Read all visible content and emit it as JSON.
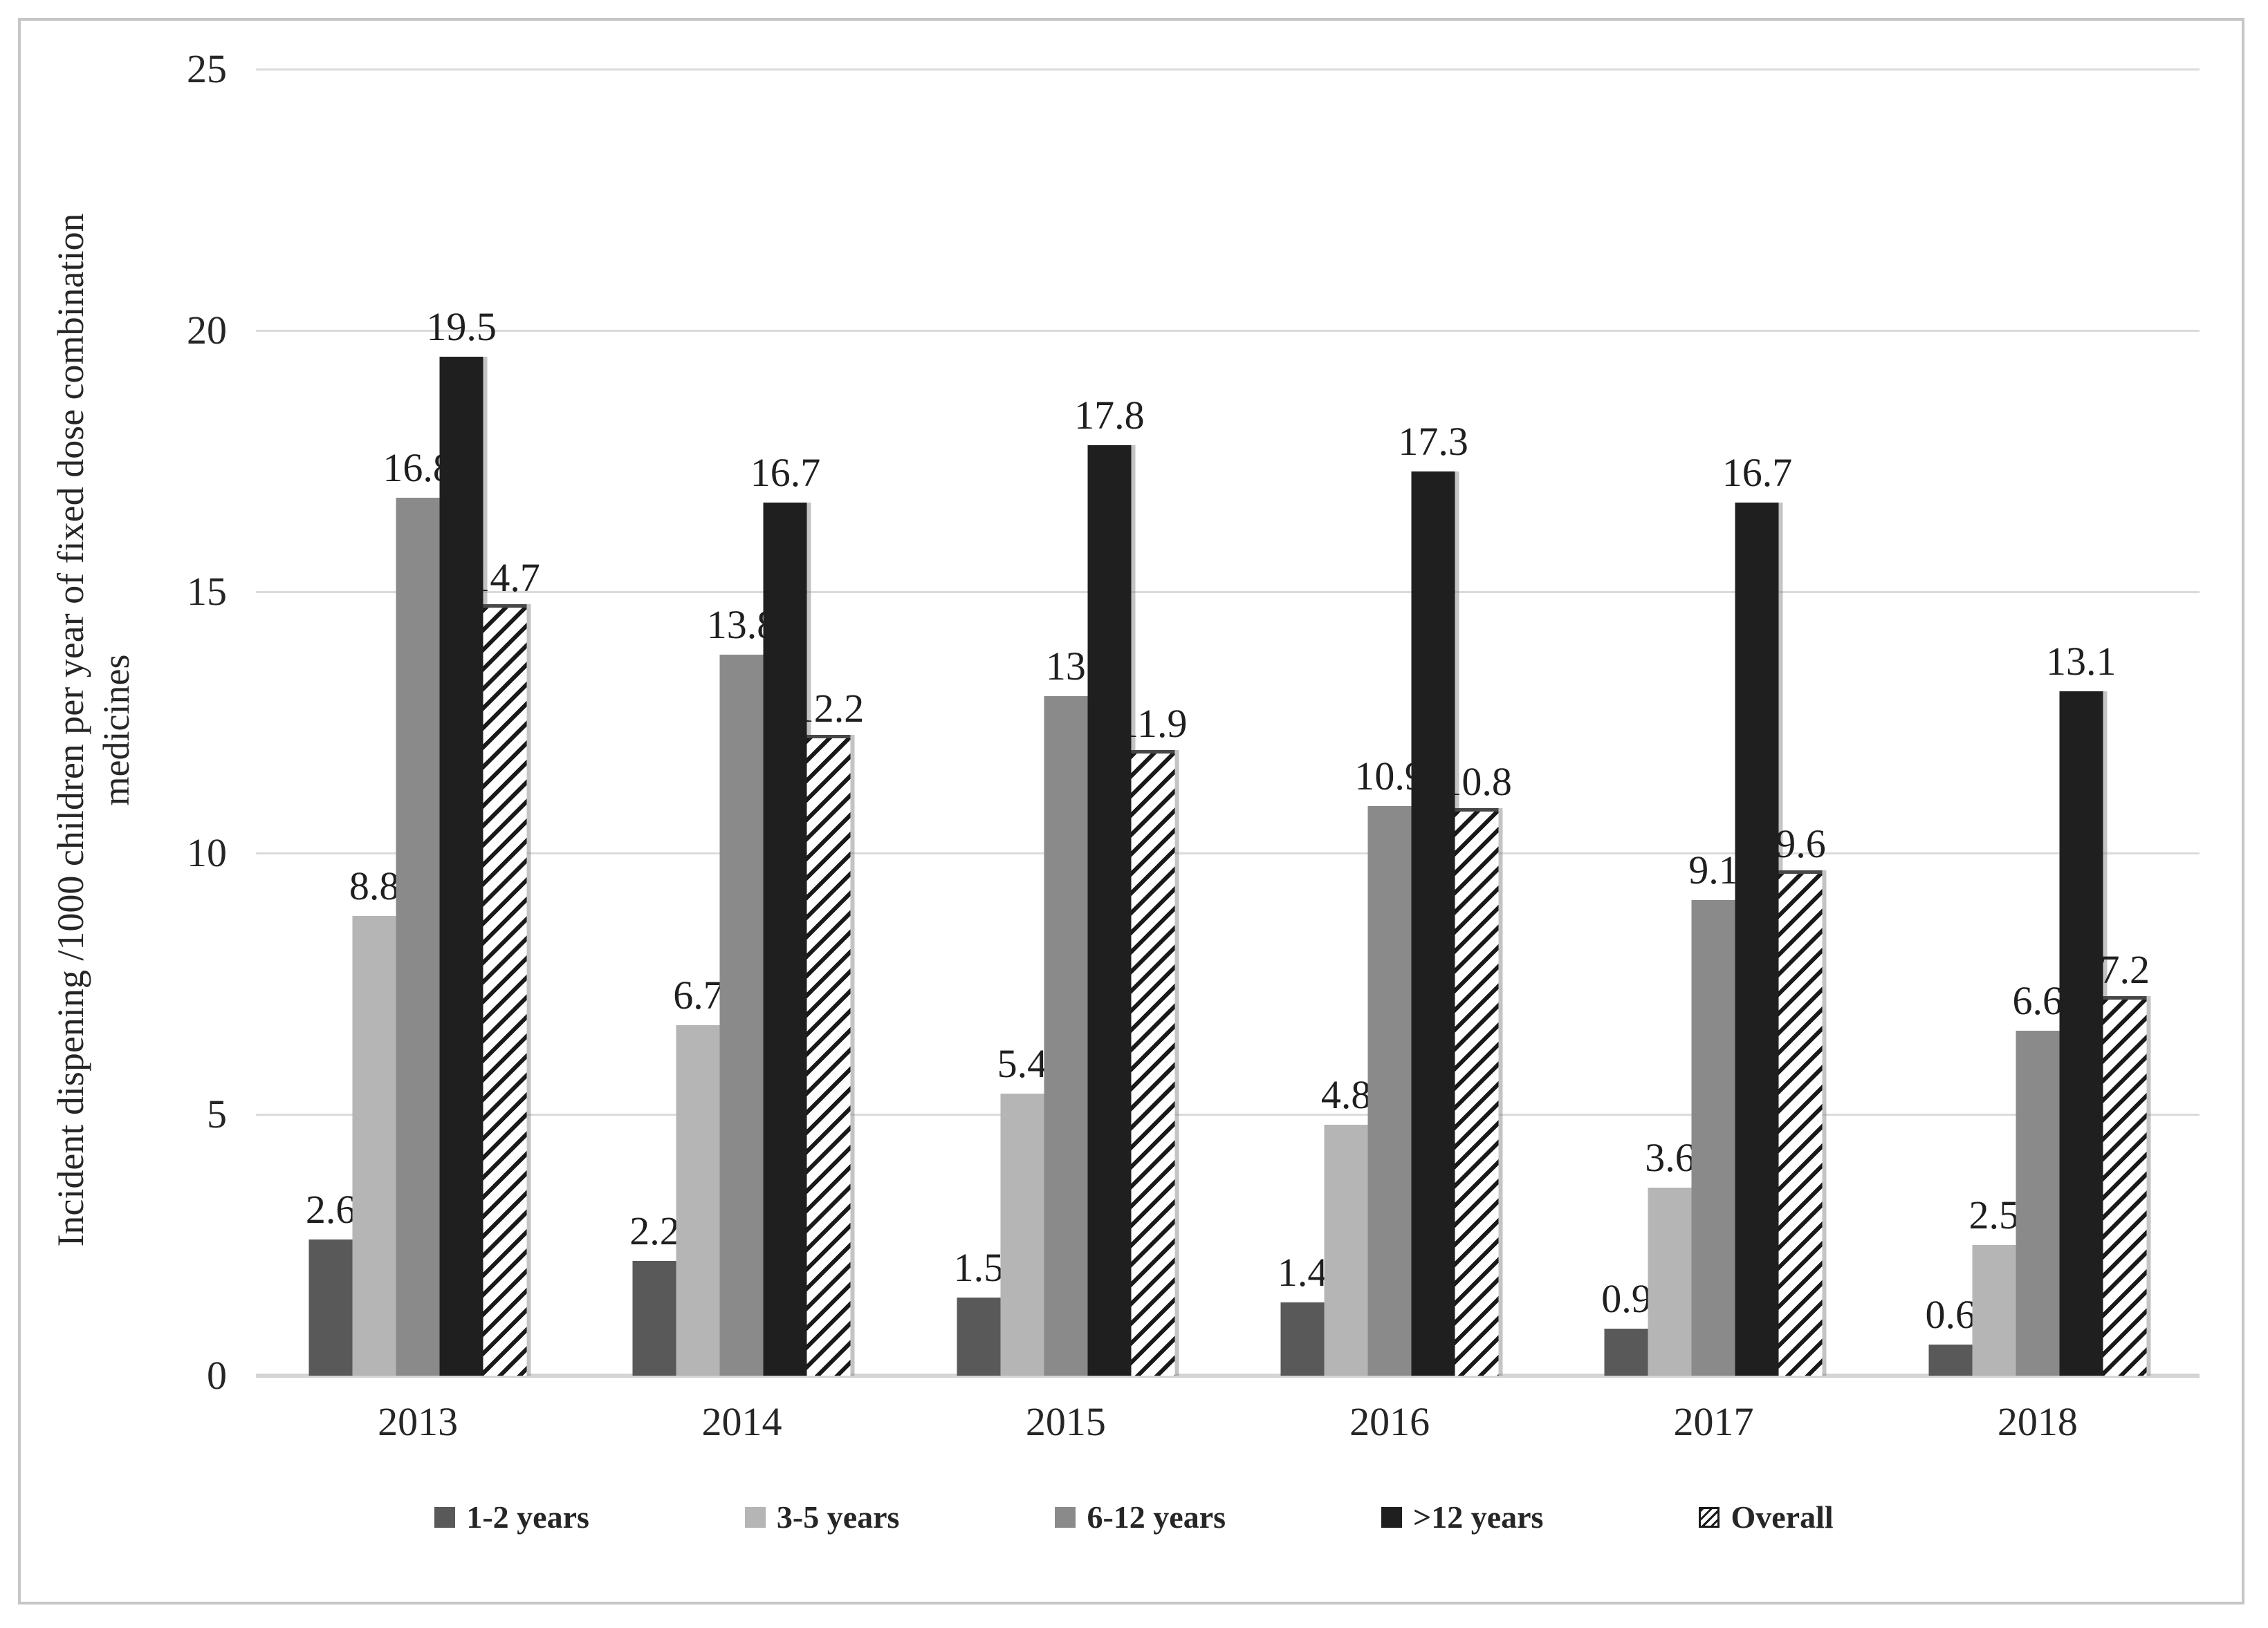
{
  "figure": {
    "background_color": "#ffffff",
    "frame_border_color": "#c6c6c6",
    "text_color": "#262626",
    "gridline_color": "#dbdbdb"
  },
  "chart_data": {
    "type": "bar",
    "title": "",
    "xlabel": "",
    "ylabel": "Incident dispening /1000 children per year of fixed dose combination\nmedicines",
    "categories": [
      "2013",
      "2014",
      "2015",
      "2016",
      "2017",
      "2018"
    ],
    "series": [
      {
        "name": "1-2 years",
        "color": "#595959",
        "pattern": "solid",
        "values": [
          2.6,
          2.2,
          1.5,
          1.4,
          0.9,
          0.6
        ]
      },
      {
        "name": "3-5 years",
        "color": "#b5b5b5",
        "pattern": "solid",
        "values": [
          8.8,
          6.7,
          5.4,
          4.8,
          3.6,
          2.5
        ]
      },
      {
        "name": "6-12 years",
        "color": "#8a8a8a",
        "pattern": "solid",
        "values": [
          16.8,
          13.8,
          13,
          10.9,
          9.1,
          6.6
        ]
      },
      {
        "name": ">12 years",
        "color": "#1f1f1f",
        "pattern": "solid",
        "values": [
          19.5,
          16.7,
          17.8,
          17.3,
          16.7,
          13.1
        ]
      },
      {
        "name": "Overall",
        "color": "#ffffff",
        "pattern": "diagonal-hatch",
        "hatch_color": "#191919",
        "values": [
          14.7,
          12.2,
          11.9,
          10.8,
          9.6,
          7.2
        ]
      }
    ],
    "y_axis": {
      "min": 0,
      "max": 25,
      "tick_step": 5,
      "ticks": [
        "0",
        "5",
        "10",
        "15",
        "20",
        "25"
      ]
    },
    "grid": true,
    "data_labels": true,
    "legend_position": "bottom"
  }
}
